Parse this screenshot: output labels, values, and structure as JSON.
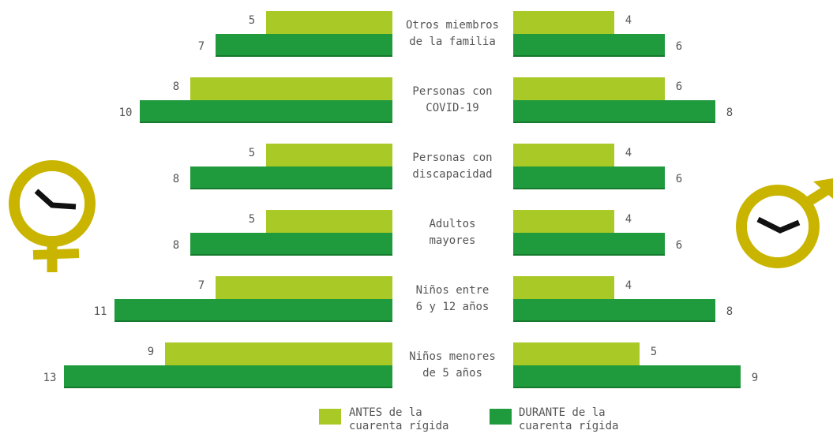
{
  "chart_data": {
    "type": "bar",
    "categories": [
      "Otros miembros\nde la familia",
      "Personas con\nCOVID-19",
      "Personas con\ndiscapacidad",
      "Adultos\nmayores",
      "Niños entre\n6 y 12 años",
      "Niños menores\nde 5 años"
    ],
    "legend": [
      {
        "name": "ANTES de la\ncuarenta rígida",
        "color": "#a9c927"
      },
      {
        "name": "DURANTE de la\ncuarenta rígida",
        "color": "#1f9a3d"
      }
    ],
    "panels": [
      {
        "series": [
          {
            "color": "#a9c927",
            "values": [
              5,
              8,
              5,
              5,
              7,
              9
            ]
          },
          {
            "color": "#1f9a3d",
            "values": [
              7,
              10,
              8,
              8,
              11,
              13
            ]
          }
        ]
      },
      {
        "series": [
          {
            "color": "#a9c927",
            "values": [
              4,
              6,
              4,
              4,
              4,
              5
            ]
          },
          {
            "color": "#1f9a3d",
            "values": [
              6,
              8,
              6,
              6,
              8,
              9
            ]
          }
        ]
      }
    ]
  }
}
